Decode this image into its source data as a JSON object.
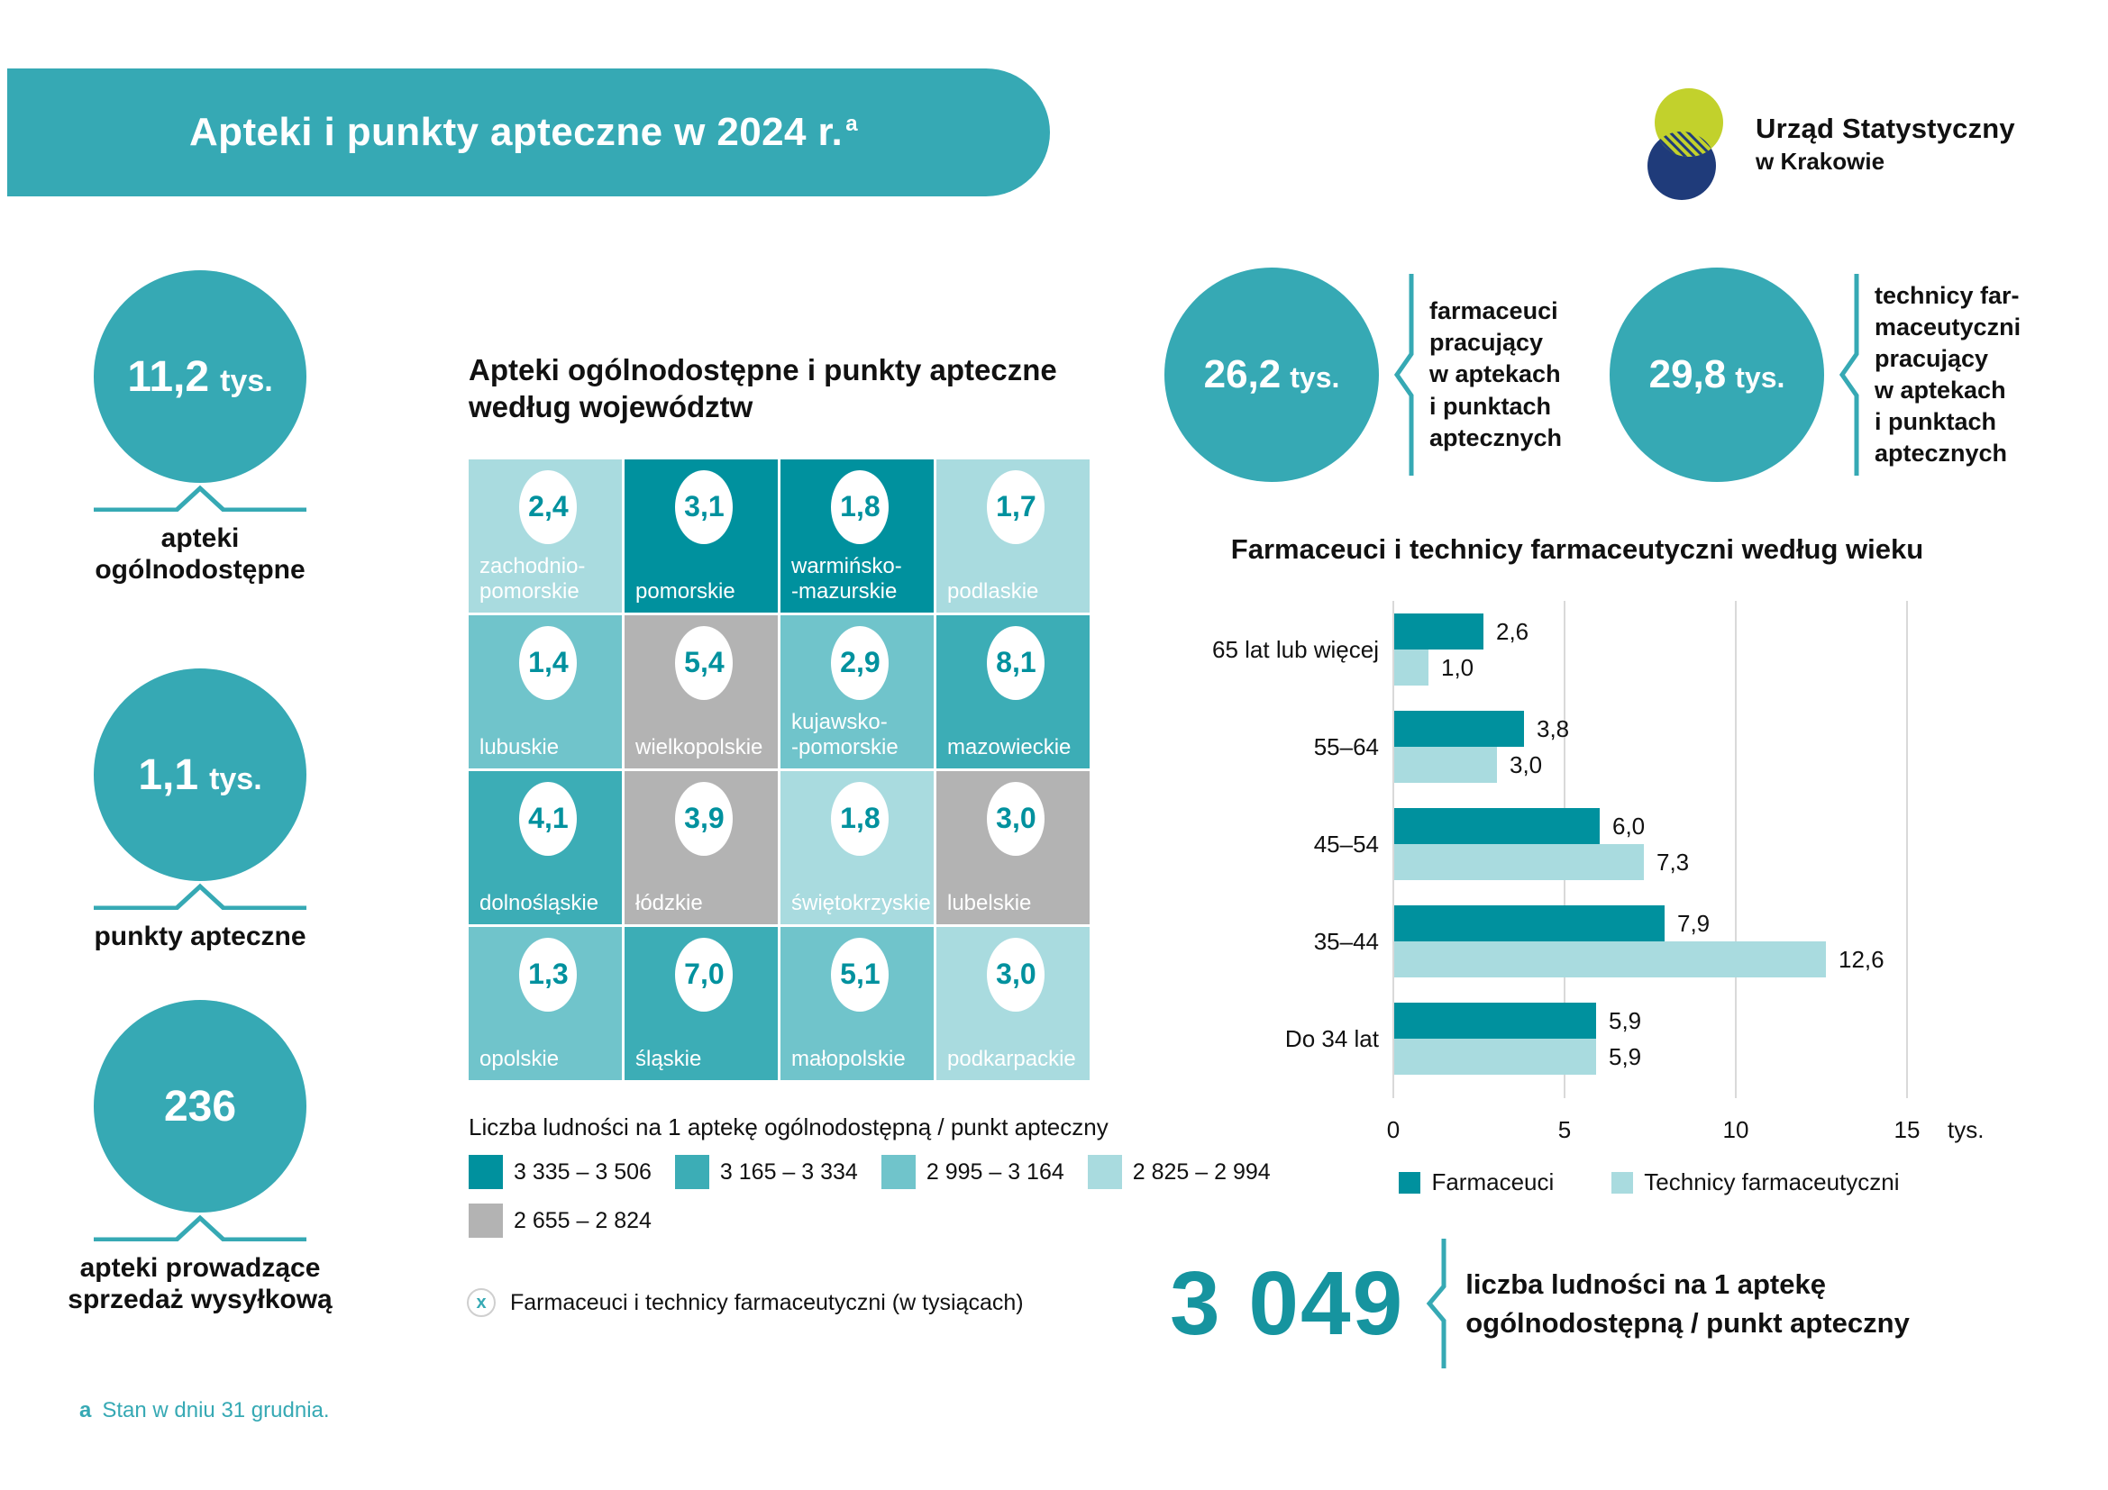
{
  "page": {
    "title": "Apteki i punkty apteczne w 2024 r.",
    "title_footnote_marker": "a",
    "footnote_marker": "a",
    "footnote": "Stan w dniu 31 grudnia."
  },
  "logo": {
    "org_line1": "Urząd Statystyczny",
    "org_line2": "w Krakowie"
  },
  "colors": {
    "primary_teal": "#36a9b4",
    "dark_teal": "#00919e",
    "big_number_teal": "#16949f",
    "gridline_gray": "#d9d9d9",
    "logo_green": "#c2d12c",
    "logo_navy": "#1f3b7a"
  },
  "stats_left": [
    {
      "key": "apteki-ogolnodostepne",
      "value": "11,2",
      "unit": "tys.",
      "label": "apteki\nogólnodostępne"
    },
    {
      "key": "punkty-apteczne",
      "value": "1,1",
      "unit": "tys.",
      "label": "punkty apteczne"
    },
    {
      "key": "apteki-sprzedaz-wysylkowa",
      "value": "236",
      "unit": "",
      "label": "apteki prowadzące\nsprzedaż wysyłkową"
    }
  ],
  "map": {
    "title": "Apteki ogólnodostępne i punkty apteczne\nwedług województw",
    "level_colors": {
      "1": "#00919e",
      "2": "#3cadb6",
      "3": "#70c4cb",
      "4": "#a9dbdf",
      "5": "#b3b3b3"
    },
    "tiles": [
      {
        "key": "zachodniopomorskie",
        "name": "zachodnio-\npomorskie",
        "value": "2,4",
        "level": 4
      },
      {
        "key": "pomorskie",
        "name": "pomorskie",
        "value": "3,1",
        "level": 1
      },
      {
        "key": "warminsko-mazurskie",
        "name": "warmińsko-\n-mazurskie",
        "value": "1,8",
        "level": 1
      },
      {
        "key": "podlaskie",
        "name": "podlaskie",
        "value": "1,7",
        "level": 4
      },
      {
        "key": "lubuskie",
        "name": "lubuskie",
        "value": "1,4",
        "level": 3
      },
      {
        "key": "wielkopolskie",
        "name": "wielkopolskie",
        "value": "5,4",
        "level": 5
      },
      {
        "key": "kujawsko-pomorskie",
        "name": "kujawsko-\n-pomorskie",
        "value": "2,9",
        "level": 3
      },
      {
        "key": "mazowieckie",
        "name": "mazowieckie",
        "value": "8,1",
        "level": 2
      },
      {
        "key": "dolnoslaskie",
        "name": "dolnośląskie",
        "value": "4,1",
        "level": 2
      },
      {
        "key": "lodzkie",
        "name": "łódzkie",
        "value": "3,9",
        "level": 5
      },
      {
        "key": "swietokrzyskie",
        "name": "świętokrzyskie",
        "value": "1,8",
        "level": 4
      },
      {
        "key": "lubelskie",
        "name": "lubelskie",
        "value": "3,0",
        "level": 5
      },
      {
        "key": "opolskie",
        "name": "opolskie",
        "value": "1,3",
        "level": 3
      },
      {
        "key": "slaskie",
        "name": "śląskie",
        "value": "7,0",
        "level": 2
      },
      {
        "key": "malopolskie",
        "name": "małopolskie",
        "value": "5,1",
        "level": 3
      },
      {
        "key": "podkarpackie",
        "name": "podkarpackie",
        "value": "3,0",
        "level": 4
      }
    ],
    "legend_title": "Liczba ludności na 1 aptekę ogólnodostępną / punkt apteczny",
    "legend": [
      {
        "range": "3 335 – 3 506",
        "level": 1,
        "color": "#00919e"
      },
      {
        "range": "3 165 – 3 334",
        "level": 2,
        "color": "#3cadb6"
      },
      {
        "range": "2 995 – 3 164",
        "level": 3,
        "color": "#70c4cb"
      },
      {
        "range": "2 825 – 2 994",
        "level": 4,
        "color": "#a9dbdf"
      },
      {
        "range": "2 655 – 2 824",
        "level": 5,
        "color": "#b3b3b3"
      }
    ],
    "note_marker": "x",
    "note": "Farmaceuci i technicy farmaceutyczni (w tysiącach)"
  },
  "stats_right": [
    {
      "key": "farmaceuci",
      "value": "26,2",
      "unit": "tys.",
      "label": "farmaceuci\npracujący\nw aptekach\ni punktach\naptecznych"
    },
    {
      "key": "technicy-farmaceutyczni",
      "value": "29,8",
      "unit": "tys.",
      "label": "technicy far-\nmaceutyczni\npracujący\nw aptekach\ni punktach\naptecznych"
    }
  ],
  "chart_data": {
    "type": "bar",
    "orientation": "horizontal",
    "title": "Farmaceuci i technicy farmaceutyczni według wieku",
    "categories": [
      "65 lat lub więcej",
      "55–64",
      "45–54",
      "35–44",
      "Do 34 lat"
    ],
    "series": [
      {
        "name": "Farmaceuci",
        "color": "#00919e",
        "values": [
          2.6,
          3.8,
          6.0,
          7.9,
          5.9
        ],
        "labels": [
          "2,6",
          "3,8",
          "6,0",
          "7,9",
          "5,9"
        ]
      },
      {
        "name": "Technicy farmaceutyczni",
        "color": "#a9dbdf",
        "values": [
          1.0,
          3.0,
          7.3,
          12.6,
          5.9
        ],
        "labels": [
          "1,0",
          "3,0",
          "7,3",
          "12,6",
          "5,9"
        ]
      }
    ],
    "xlim": [
      0,
      15
    ],
    "xticks": [
      0,
      5,
      10,
      15
    ],
    "x_unit": "tys.",
    "grid": "vertical",
    "legend_position": "bottom"
  },
  "bottom_stat": {
    "value": "3 049",
    "label": "liczba ludności na 1 aptekę\nogólnodostępną / punkt apteczny"
  }
}
